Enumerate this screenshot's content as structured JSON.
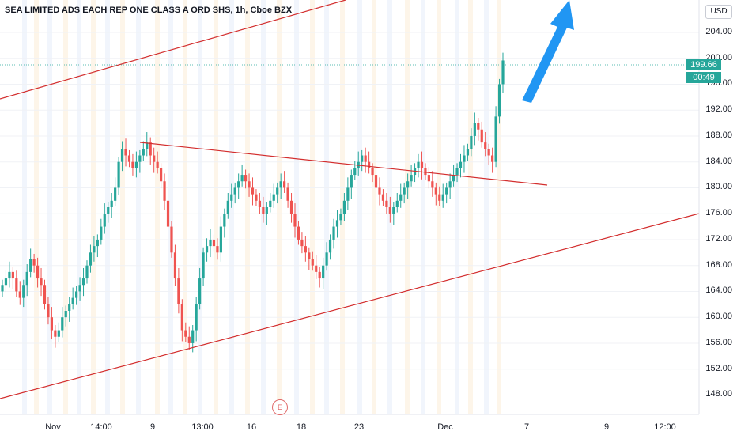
{
  "title": "SEA LIMITED ADS EACH REP ONE CLASS A ORD SHS, 1h, Cboe BZX",
  "currency": "USD",
  "price_axis": [
    "204.00",
    "200.00",
    "196.00",
    "192.00",
    "188.00",
    "184.00",
    "180.00",
    "176.00",
    "172.00",
    "168.00",
    "164.00",
    "160.00",
    "156.00",
    "152.00",
    "148.00"
  ],
  "time_axis": [
    "Nov",
    "14:00",
    "9",
    "13:00",
    "16",
    "18",
    "23",
    "Dec",
    "7",
    "9",
    "12:00"
  ],
  "last_price": "199.66",
  "countdown": "00:49",
  "earnings_marker": "E",
  "colors": {
    "up": "#26a69a",
    "down": "#ef5350",
    "trendline": "#d32f2f",
    "arrow": "#2196f3"
  },
  "chart_data": {
    "type": "candlestick",
    "title": "SEA LIMITED ADS EACH REP ONE CLASS A ORD SHS, 1h, Cboe BZX",
    "ylim": [
      145,
      209
    ],
    "y_ticks": [
      148,
      152,
      156,
      160,
      164,
      168,
      172,
      176,
      180,
      184,
      188,
      192,
      196,
      200,
      204
    ],
    "x_ticks": [
      "Nov",
      "14:00",
      "9",
      "13:00",
      "16",
      "18",
      "23",
      "Dec",
      "7",
      "9",
      "12:00"
    ],
    "last_price": 199.66,
    "approx_close_path": [
      165,
      166,
      167,
      166,
      164,
      163,
      165,
      167,
      169,
      168,
      166,
      165,
      162,
      160,
      158,
      157,
      158,
      160,
      161,
      162,
      163,
      164,
      165,
      166,
      168,
      170,
      171,
      172,
      174,
      176,
      177,
      178,
      180,
      184,
      186,
      185,
      184,
      183,
      184,
      185,
      186,
      187,
      185,
      184,
      183,
      181,
      178,
      174,
      170,
      166,
      162,
      158,
      157,
      156,
      158,
      162,
      166,
      170,
      171,
      172,
      171,
      170,
      174,
      176,
      178,
      179,
      180,
      181,
      182,
      181,
      180,
      179,
      178,
      177,
      176,
      177,
      178,
      179,
      180,
      181,
      180,
      178,
      176,
      174,
      172,
      171,
      170,
      169,
      168,
      167,
      166,
      168,
      170,
      172,
      174,
      175,
      176,
      178,
      180,
      182,
      183,
      184,
      185,
      184,
      183,
      182,
      180,
      179,
      178,
      177,
      176,
      177,
      178,
      179,
      180,
      181,
      182,
      183,
      184,
      183,
      182,
      181,
      180,
      179,
      178,
      179,
      180,
      181,
      182,
      183,
      184,
      185,
      186,
      188,
      190,
      189,
      187,
      186,
      185,
      184,
      191,
      196,
      199.66
    ]
  }
}
